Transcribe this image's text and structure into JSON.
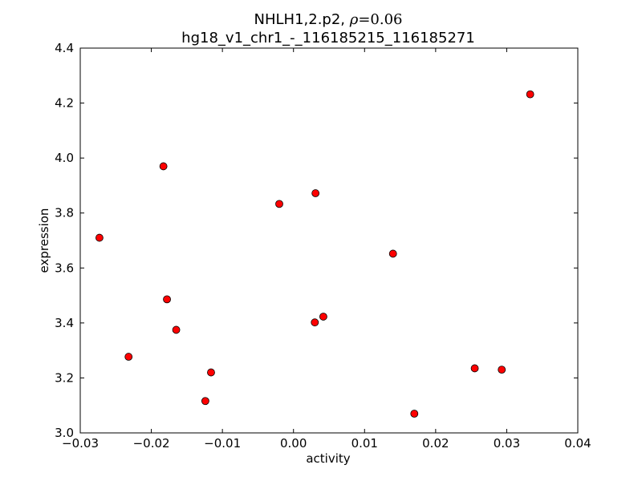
{
  "chart_data": {
    "type": "scatter",
    "title_prefix": "NHLH1,2.p2, ",
    "title_rho_symbol": "ρ",
    "title_rho_value": "=0.06",
    "subtitle": "hg18_v1_chr1_-_116185215_116185271",
    "xlabel": "activity",
    "ylabel": "expression",
    "xlim": [
      -0.03,
      0.04
    ],
    "ylim": [
      3.0,
      4.4
    ],
    "xticks": [
      -0.03,
      -0.02,
      -0.01,
      0.0,
      0.01,
      0.02,
      0.03,
      0.04
    ],
    "xtick_labels": [
      "−0.03",
      "−0.02",
      "−0.01",
      "0.00",
      "0.01",
      "0.02",
      "0.03",
      "0.04"
    ],
    "yticks": [
      3.0,
      3.2,
      3.4,
      3.6,
      3.8,
      4.0,
      4.2,
      4.4
    ],
    "ytick_labels": [
      "3.0",
      "3.2",
      "3.4",
      "3.6",
      "3.8",
      "4.0",
      "4.2",
      "4.4"
    ],
    "grid": false,
    "marker_color": "#ff0000",
    "marker_edge": "#000000",
    "points": [
      {
        "x": -0.0273,
        "y": 3.71
      },
      {
        "x": -0.0232,
        "y": 3.277
      },
      {
        "x": -0.0183,
        "y": 3.97
      },
      {
        "x": -0.0178,
        "y": 3.486
      },
      {
        "x": -0.0165,
        "y": 3.375
      },
      {
        "x": -0.0124,
        "y": 3.116
      },
      {
        "x": -0.0116,
        "y": 3.22
      },
      {
        "x": -0.002,
        "y": 3.833
      },
      {
        "x": 0.003,
        "y": 3.402
      },
      {
        "x": 0.0031,
        "y": 3.872
      },
      {
        "x": 0.0042,
        "y": 3.423
      },
      {
        "x": 0.014,
        "y": 3.652
      },
      {
        "x": 0.017,
        "y": 3.07
      },
      {
        "x": 0.0255,
        "y": 3.235
      },
      {
        "x": 0.0293,
        "y": 3.23
      },
      {
        "x": 0.0333,
        "y": 4.232
      }
    ]
  }
}
